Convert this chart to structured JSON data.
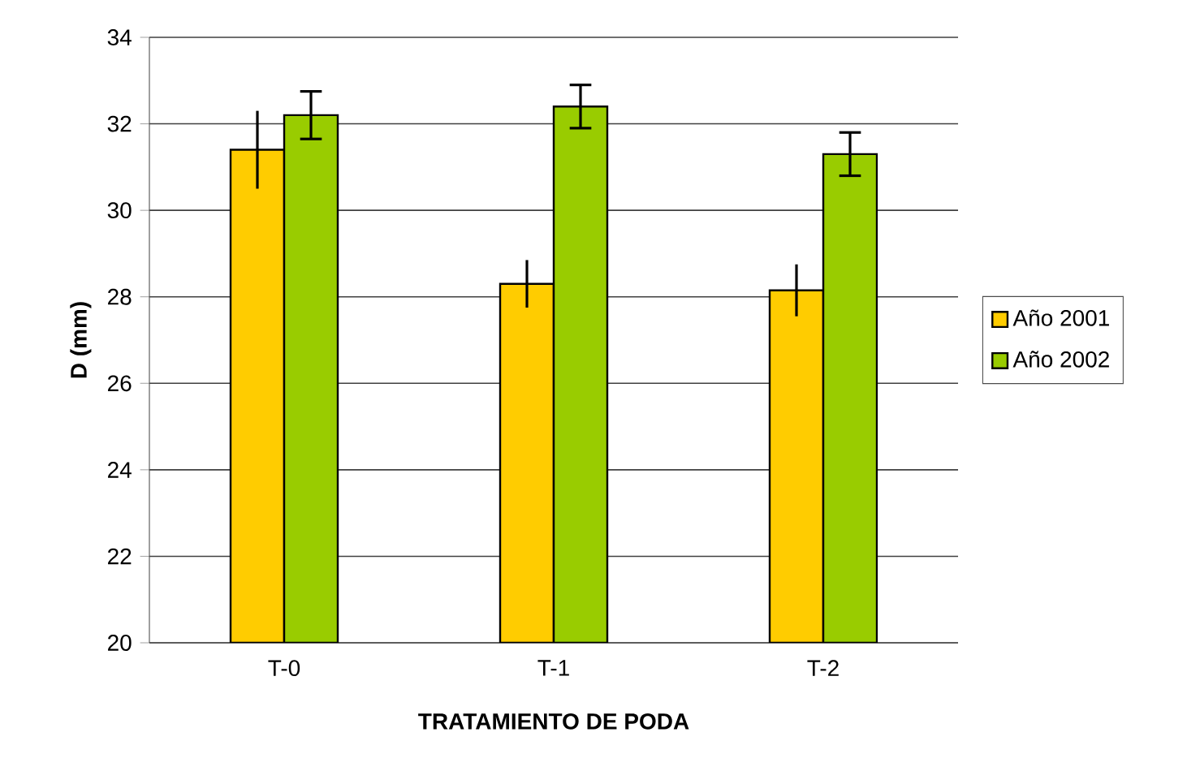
{
  "chart_data": {
    "type": "bar",
    "xlabel": "TRATAMIENTO DE PODA",
    "ylabel": "D (mm)",
    "categories": [
      "T-0",
      "T-1",
      "T-2"
    ],
    "series": [
      {
        "name": "Año 2001",
        "color": "#ffcc00",
        "values": [
          31.4,
          28.3,
          28.15
        ],
        "errors": [
          0.9,
          0.55,
          0.6
        ]
      },
      {
        "name": "Año 2002",
        "color": "#99cc00",
        "values": [
          32.2,
          32.4,
          31.3
        ],
        "errors": [
          0.55,
          0.5,
          0.5
        ]
      }
    ],
    "ylim": [
      20,
      34
    ],
    "yticks": [
      20,
      22,
      24,
      26,
      28,
      30,
      32,
      34
    ],
    "grid": "y",
    "legend": "right"
  }
}
